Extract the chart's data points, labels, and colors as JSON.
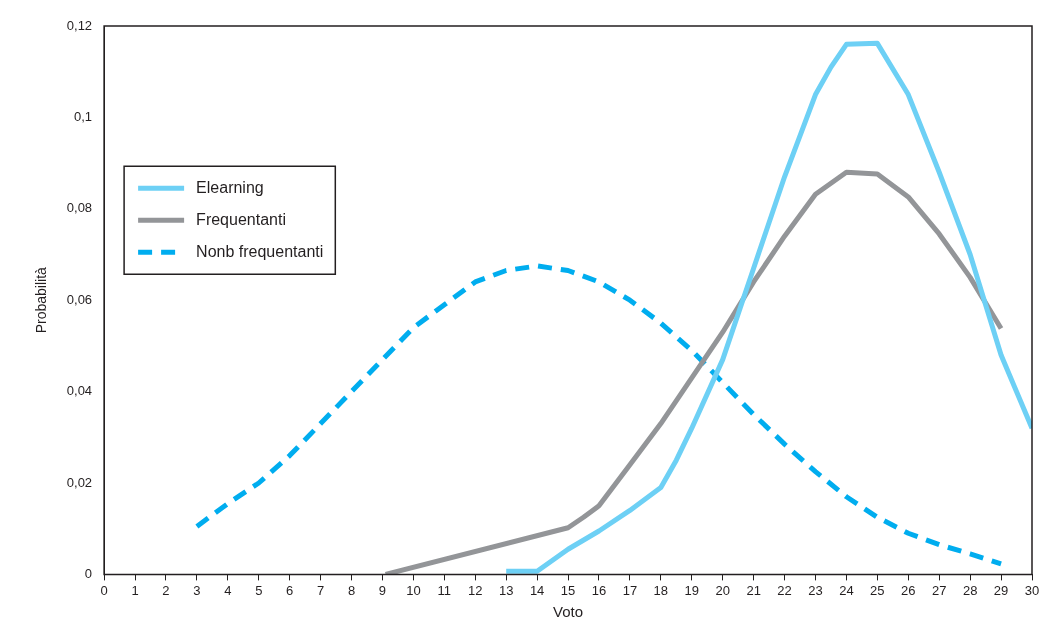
{
  "chart_data": {
    "type": "line",
    "xlabel": "Voto",
    "ylabel": "Probabilità",
    "legend": "left",
    "marker": "none",
    "grid": false,
    "xlim": [
      0,
      30
    ],
    "xticks": [
      0,
      1,
      2,
      3,
      4,
      5,
      6,
      7,
      8,
      9,
      10,
      11,
      12,
      13,
      14,
      15,
      16,
      17,
      18,
      19,
      20,
      21,
      22,
      23,
      24,
      25,
      26,
      27,
      28,
      29,
      30
    ],
    "ylim": [
      0,
      0.12
    ],
    "yticks": [
      0,
      {
        "value": 0.02,
        "label": "0,02"
      },
      {
        "value": 0.04,
        "label": "0,04"
      },
      {
        "value": 0.06,
        "label": "0,06"
      },
      {
        "value": 0.08,
        "label": "0,08"
      },
      {
        "value": 0.1,
        "label": "0,1"
      },
      {
        "value": 0.12,
        "label": "0,12"
      }
    ],
    "series": [
      {
        "name": "Elearning",
        "color": "#6dd0f5",
        "line_style": "solid",
        "x": [
          13,
          14,
          15,
          16,
          17,
          18,
          18.5,
          19,
          20,
          21,
          22,
          23,
          23.5,
          24,
          25,
          26,
          27,
          28,
          29,
          30
        ],
        "values": [
          0.0007,
          0.0007,
          0.0055,
          0.0095,
          0.014,
          0.019,
          0.025,
          0.032,
          0.047,
          0.067,
          0.087,
          0.105,
          0.111,
          0.116,
          0.1162,
          0.105,
          0.088,
          0.07,
          0.048,
          0.032
        ]
      },
      {
        "name": "Frequentanti",
        "color": "#939598",
        "line_style": "solid",
        "x": [
          9.1,
          15,
          15.5,
          16,
          17,
          18,
          19,
          20,
          21,
          22,
          23,
          24,
          25,
          26,
          27,
          28,
          29
        ],
        "values": [
          0,
          0.0102,
          0.0125,
          0.015,
          0.024,
          0.033,
          0.043,
          0.053,
          0.064,
          0.074,
          0.0832,
          0.088,
          0.0876,
          0.0826,
          0.0745,
          0.065,
          0.0538
        ]
      },
      {
        "name": "Nonb frequentanti",
        "color": "#00adef",
        "line_style": "dashed",
        "x": [
          3,
          4,
          5,
          6,
          7,
          8,
          9,
          10,
          11,
          12,
          13,
          14,
          15,
          16,
          17,
          18,
          19,
          20,
          21,
          22,
          23,
          24,
          25,
          26,
          27,
          28,
          29
        ],
        "values": [
          0.0105,
          0.0155,
          0.02,
          0.026,
          0.033,
          0.04,
          0.047,
          0.054,
          0.059,
          0.064,
          0.0665,
          0.0675,
          0.0665,
          0.064,
          0.06,
          0.055,
          0.049,
          0.042,
          0.035,
          0.0285,
          0.0225,
          0.017,
          0.0125,
          0.009,
          0.0065,
          0.0045,
          0.0023
        ]
      }
    ]
  }
}
